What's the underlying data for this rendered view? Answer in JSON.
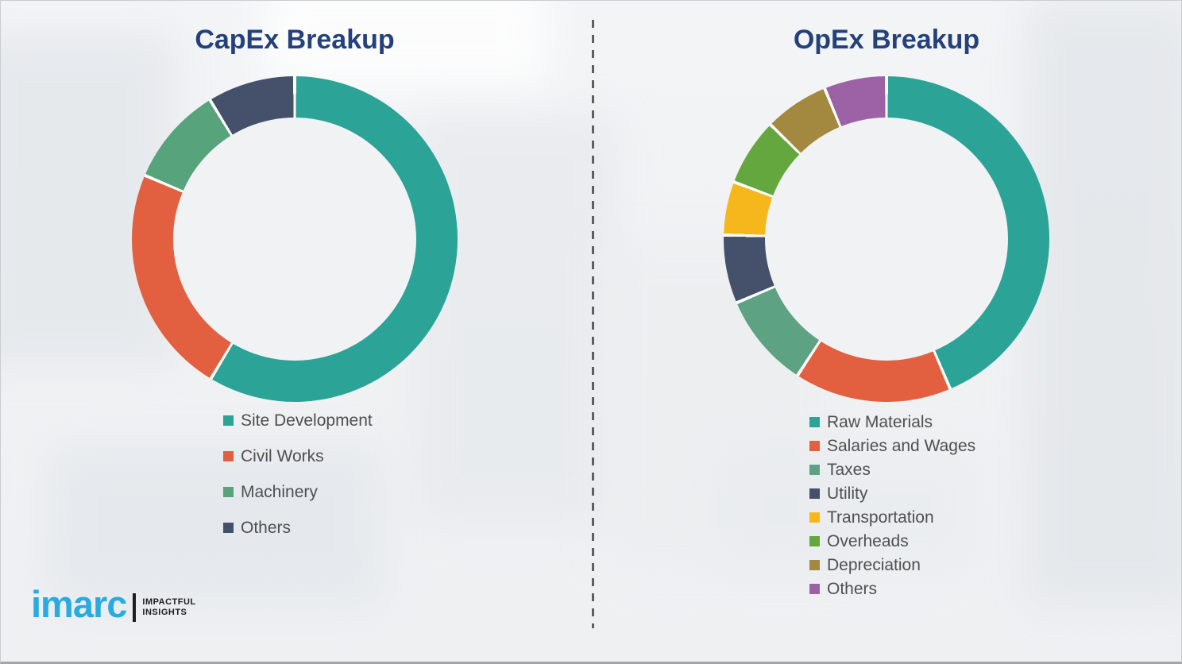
{
  "page": {
    "background_color": "#f0f1f3",
    "divider_color": "#5f5f5f"
  },
  "chart_data": [
    {
      "type": "pie",
      "subtype": "donut",
      "title": "CapEx Breakup",
      "categories": [
        "Site Development",
        "Civil Works",
        "Machinery",
        "Others"
      ],
      "values_pct_estimated": [
        58.6,
        22.8,
        9.9,
        8.7
      ],
      "colors": [
        "#2ba396",
        "#e2603f",
        "#57a37c",
        "#45506b"
      ],
      "start_angle_deg": 0,
      "direction": "clockwise",
      "data_labels": false,
      "legend_position": "below-left",
      "ring_thickness_px": 52
    },
    {
      "type": "pie",
      "subtype": "donut",
      "title": "OpEx Breakup",
      "categories": [
        "Raw Materials",
        "Salaries and Wages",
        "Taxes",
        "Utility",
        "Transportation",
        "Overheads",
        "Depreciation",
        "Others"
      ],
      "values_pct_estimated": [
        43.6,
        15.6,
        9.4,
        6.8,
        5.3,
        6.7,
        6.4,
        6.2
      ],
      "colors": [
        "#2ba396",
        "#e2603f",
        "#5da383",
        "#45506b",
        "#f6b71c",
        "#64a73e",
        "#a3883f",
        "#9d62a6"
      ],
      "start_angle_deg": 0,
      "direction": "clockwise",
      "data_labels": false,
      "legend_position": "below-left",
      "ring_thickness_px": 52
    }
  ],
  "logo": {
    "brand": "imarc",
    "tagline_line1": "IMPACTFUL",
    "tagline_line2": "INSIGHTS",
    "brand_color": "#29abe2",
    "tagline_color": "#1d1d1f"
  }
}
